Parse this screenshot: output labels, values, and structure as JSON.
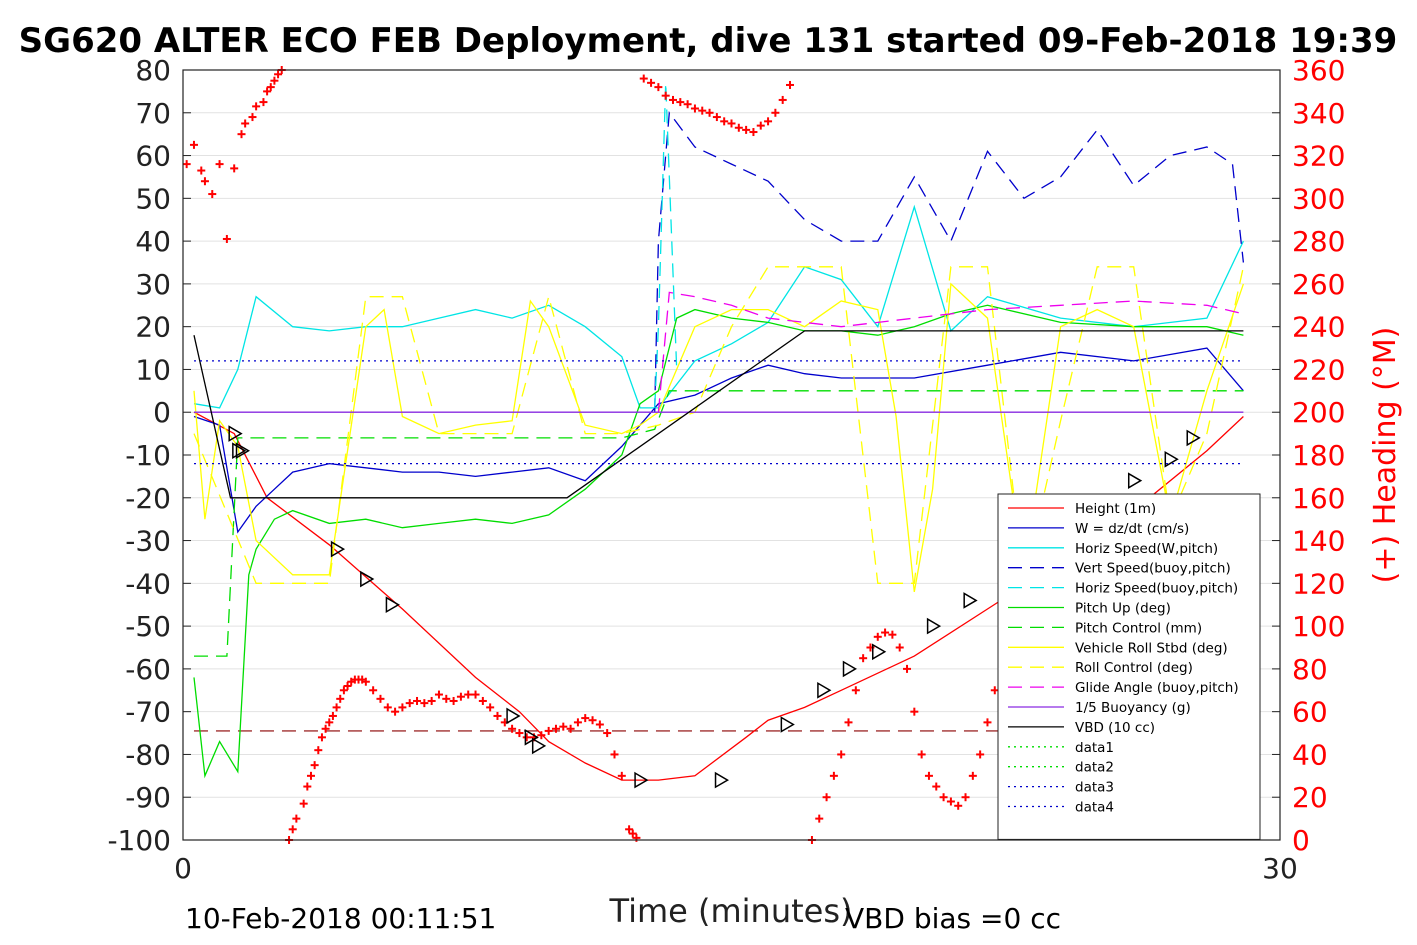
{
  "chart_data": {
    "type": "line",
    "title": "SG620 ALTER ECO FEB Deployment, dive 131 started 09-Feb-2018 19:39",
    "xlabel": "Time (minutes)",
    "ylabel_right": "(+) Heading (°M)",
    "xlim": [
      0,
      30
    ],
    "ylim": [
      -100,
      80
    ],
    "ylim_right": [
      0,
      360
    ],
    "x_ticks": [
      "0",
      "30"
    ],
    "y_ticks": [
      "80",
      "70",
      "60",
      "50",
      "40",
      "30",
      "20",
      "10",
      "0",
      "-10",
      "-20",
      "-30",
      "-40",
      "-50",
      "-60",
      "-70",
      "-80",
      "-90",
      "-100"
    ],
    "y_right_ticks": [
      "360",
      "340",
      "320",
      "300",
      "280",
      "260",
      "240",
      "220",
      "200",
      "180",
      "160",
      "140",
      "120",
      "100",
      "80",
      "60",
      "40",
      "20",
      "0"
    ],
    "footer_left": "10-Feb-2018 00:11:51",
    "footer_right": "VBD bias =0 cc",
    "legend_position": "lower-right",
    "series": [
      {
        "name": "Height (1m)",
        "color": "#ff0000",
        "style": "solid",
        "x": [
          0.3,
          1.4,
          2.3,
          4.0,
          6.0,
          8.0,
          9.2,
          10.0,
          11.0,
          12.0,
          13.0,
          14.0,
          15.4,
          16.0,
          17.0,
          18.0,
          20.0,
          22.0,
          24.0,
          26.0,
          28.0,
          29.0
        ],
        "y": [
          0,
          -5,
          -20,
          -31,
          -46,
          -62,
          -70,
          -77,
          -82,
          -86,
          -86,
          -85,
          -76,
          -72,
          -69,
          -65,
          -57,
          -46,
          -35,
          -23,
          -9,
          -1
        ]
      },
      {
        "name": "W = dz/dt (cm/s)",
        "color": "#0000cc",
        "style": "solid",
        "x": [
          0.3,
          1.0,
          1.5,
          2.0,
          2.5,
          3.0,
          4.0,
          5.0,
          6.0,
          7.0,
          8.0,
          9.0,
          10.0,
          11.0,
          12.0,
          12.5,
          13.0,
          14.0,
          15.0,
          16.0,
          17.0,
          18.0,
          20.0,
          22.0,
          24.0,
          26.0,
          28.0,
          29.0
        ],
        "y": [
          -1,
          -3,
          -28,
          -22,
          -18,
          -14,
          -12,
          -13,
          -14,
          -14,
          -15,
          -14,
          -13,
          -16,
          -8,
          -3,
          2,
          4,
          8,
          11,
          9,
          8,
          8,
          11,
          14,
          12,
          15,
          5
        ]
      },
      {
        "name": "Horiz Speed(W,pitch)",
        "color": "#00e5e5",
        "style": "solid",
        "x": [
          0.3,
          1.0,
          1.5,
          2.0,
          3.0,
          4.0,
          5.0,
          6.0,
          7.0,
          8.0,
          9.0,
          10.0,
          11.0,
          12.0,
          12.5,
          13.0,
          14.0,
          15.0,
          16.0,
          17.0,
          18.0,
          19.0,
          20.0,
          21.0,
          22.0,
          24.0,
          26.0,
          28.0,
          29.0
        ],
        "y": [
          2,
          1,
          10,
          27,
          20,
          19,
          20,
          20,
          22,
          24,
          22,
          25,
          20,
          13,
          1,
          1,
          12,
          16,
          21,
          34,
          31,
          20,
          48,
          19,
          27,
          22,
          20,
          22,
          40
        ]
      },
      {
        "name": "Vert Speed(buoy,pitch)",
        "color": "#0000cc",
        "style": "dashed",
        "x": [
          12.9,
          13.0,
          13.3,
          14.0,
          15.0,
          16.0,
          17.0,
          18.0,
          19.0,
          20.0,
          21.0,
          22.0,
          23.0,
          24.0,
          25.0,
          26.0,
          27.0,
          28.0,
          28.7,
          29.0
        ],
        "y": [
          0,
          40,
          70,
          62,
          58,
          54,
          45,
          40,
          40,
          55,
          40,
          61,
          50,
          55,
          66,
          53,
          60,
          62,
          58,
          35
        ]
      },
      {
        "name": "Horiz Speed(buoy,pitch)",
        "color": "#00e5e5",
        "style": "dashed",
        "x": [
          12.9,
          13.0,
          13.2,
          13.5
        ],
        "y": [
          1,
          20,
          77,
          10
        ]
      },
      {
        "name": "Pitch Up (deg)",
        "color": "#00dd00",
        "style": "solid",
        "x": [
          0.3,
          0.6,
          1.0,
          1.5,
          1.8,
          2.0,
          2.5,
          3.0,
          4.0,
          5.0,
          6.0,
          7.0,
          8.0,
          9.0,
          10.0,
          11.0,
          12.0,
          12.5,
          13.0,
          13.5,
          14.0,
          15.0,
          16.0,
          17.0,
          18.0,
          19.0,
          20.0,
          21.0,
          22.0,
          24.0,
          26.0,
          28.0,
          29.0
        ],
        "y": [
          -62,
          -85,
          -77,
          -84,
          -38,
          -32,
          -25,
          -23,
          -26,
          -25,
          -27,
          -26,
          -25,
          -26,
          -24,
          -18,
          -10,
          2,
          5,
          22,
          24,
          22,
          21,
          19,
          19,
          18,
          20,
          23,
          25,
          21,
          20,
          20,
          18
        ]
      },
      {
        "name": "Pitch Control (mm)",
        "color": "#00dd00",
        "style": "dashed",
        "x": [
          0.3,
          1.2,
          1.5,
          2.0,
          4.0,
          8.0,
          12.0,
          12.9,
          13.3,
          18.0,
          24.0,
          29.0
        ],
        "y": [
          -57,
          -57,
          -6,
          -6,
          -6,
          -6,
          -6,
          -4,
          5,
          5,
          5,
          5
        ]
      },
      {
        "name": "Vehicle Roll Stbd (deg)",
        "color": "#ffff00",
        "style": "solid",
        "x": [
          0.3,
          0.6,
          1.0,
          1.5,
          2.0,
          3.0,
          4.0,
          5.0,
          5.5,
          6.0,
          7.0,
          8.0,
          9.0,
          9.5,
          10.0,
          11.0,
          12.0,
          12.5,
          13.0,
          14.0,
          15.0,
          16.0,
          17.0,
          18.0,
          19.0,
          19.5,
          20.0,
          20.5,
          21.0,
          22.0,
          23.0,
          24.0,
          25.0,
          26.0,
          27.0,
          28.0,
          29.0
        ],
        "y": [
          5,
          -25,
          -2,
          -8,
          -30,
          -38,
          -38,
          20,
          24,
          -1,
          -5,
          -3,
          -2,
          26,
          20,
          -3,
          -5,
          -3,
          0,
          20,
          24,
          24,
          20,
          26,
          24,
          -1,
          -42,
          -18,
          30,
          22,
          -38,
          20,
          24,
          20,
          -25,
          5,
          30
        ]
      },
      {
        "name": "Roll Control (deg)",
        "color": "#ffff00",
        "style": "dashed",
        "x": [
          0.3,
          2.0,
          3.0,
          4.0,
          5.0,
          6.0,
          7.0,
          8.0,
          9.0,
          10.0,
          11.0,
          12.0,
          13.0,
          14.0,
          15.0,
          16.0,
          17.0,
          18.0,
          19.0,
          20.0,
          21.0,
          22.0,
          23.0,
          24.0,
          25.0,
          26.0,
          27.0,
          28.0,
          29.0
        ],
        "y": [
          -5,
          -40,
          -40,
          -40,
          27,
          27,
          -5,
          -5,
          -5,
          27,
          -5,
          -5,
          -3,
          0,
          20,
          34,
          34,
          34,
          -40,
          -40,
          34,
          34,
          -40,
          -2,
          34,
          34,
          -25,
          -5,
          34
        ]
      },
      {
        "name": "Glide Angle (buoy,pitch)",
        "color": "#ee00ee",
        "style": "dashed",
        "x": [
          13.0,
          13.3,
          14.0,
          15.0,
          16.0,
          17.0,
          18.0,
          20.0,
          22.0,
          24.0,
          26.0,
          28.0,
          29.0
        ],
        "y": [
          0,
          28,
          27,
          25,
          22,
          21,
          20,
          22,
          24,
          25,
          26,
          25,
          23
        ]
      },
      {
        "name": "1/5 Buoyancy (g)",
        "color": "#8a2be2",
        "style": "solid",
        "x": [
          0.3,
          12.9,
          13.0,
          29.0
        ],
        "y": [
          0,
          0,
          0,
          0
        ]
      },
      {
        "name": "VBD (10 cc)",
        "color": "#000000",
        "style": "solid",
        "x": [
          0.3,
          1.3,
          10.5,
          17.0,
          29.0
        ],
        "y": [
          18,
          -20,
          -20,
          19,
          19
        ]
      },
      {
        "name": "data1",
        "color": "#00dd00",
        "style": "dotted",
        "x": [],
        "y": []
      },
      {
        "name": "data2",
        "color": "#00dd00",
        "style": "dotted",
        "x": [],
        "y": []
      },
      {
        "name": "data3",
        "color": "#0000cc",
        "style": "dotted",
        "x": [
          0.3,
          29.0
        ],
        "y": [
          12,
          12
        ]
      },
      {
        "name": "data4",
        "color": "#0000cc",
        "style": "dotted",
        "x": [
          0.3,
          29.0
        ],
        "y": [
          -12,
          -12
        ]
      }
    ],
    "reference_line": {
      "color": "#8b0000",
      "style": "dashed",
      "y": -74.5
    },
    "heading_points": {
      "color": "#ff0000",
      "x": [
        0.1,
        0.3,
        0.5,
        0.6,
        0.8,
        1.0,
        1.2,
        1.4,
        1.6,
        1.7,
        1.9,
        2.0,
        2.2,
        2.3,
        2.4,
        2.5,
        2.6,
        2.7,
        2.9,
        3.0,
        3.1,
        3.3,
        3.4,
        3.5,
        3.6,
        3.7,
        3.8,
        3.9,
        4.0,
        4.1,
        4.2,
        4.3,
        4.4,
        4.5,
        4.6,
        4.7,
        4.8,
        4.9,
        5.0,
        5.2,
        5.4,
        5.6,
        5.8,
        6.0,
        6.2,
        6.4,
        6.6,
        6.8,
        7.0,
        7.2,
        7.4,
        7.6,
        7.8,
        8.0,
        8.2,
        8.4,
        8.6,
        8.8,
        9.0,
        9.2,
        9.4,
        9.6,
        9.8,
        10.0,
        10.2,
        10.4,
        10.6,
        10.8,
        11.0,
        11.2,
        11.4,
        11.6,
        11.8,
        12.0,
        12.2,
        12.3,
        12.4,
        12.6,
        12.8,
        13.0,
        13.2,
        13.4,
        13.6,
        13.8,
        14.0,
        14.2,
        14.4,
        14.6,
        14.8,
        15.0,
        15.2,
        15.4,
        15.6,
        15.8,
        16.0,
        16.2,
        16.4,
        16.6,
        17.2,
        17.4,
        17.6,
        17.8,
        18.0,
        18.2,
        18.4,
        18.6,
        18.8,
        19.0,
        19.2,
        19.4,
        19.6,
        19.8,
        20.0,
        20.2,
        20.4,
        20.6,
        20.8,
        21.0,
        21.2,
        21.4,
        21.6,
        21.8,
        22.0,
        22.2,
        22.4,
        22.6,
        22.8,
        23.0,
        23.2,
        23.4,
        23.6,
        23.8,
        24.0,
        24.2,
        24.4,
        24.6,
        24.8,
        25.0,
        25.2,
        25.4,
        25.6,
        25.8,
        26.0,
        26.2,
        26.4,
        26.6
      ],
      "y": [
        316,
        325,
        313,
        308,
        302,
        316,
        281,
        314,
        330,
        335,
        338,
        343,
        345,
        350,
        352,
        355,
        358,
        360,
        0,
        5,
        10,
        17,
        25,
        30,
        35,
        42,
        48,
        52,
        55,
        58,
        62,
        66,
        70,
        72,
        74,
        75,
        75,
        75,
        74,
        70,
        66,
        62,
        60,
        62,
        64,
        65,
        64,
        65,
        68,
        66,
        65,
        67,
        68,
        68,
        65,
        62,
        58,
        55,
        52,
        50,
        48,
        48,
        49,
        51,
        52,
        53,
        52,
        55,
        57,
        56,
        54,
        50,
        40,
        30,
        5,
        3,
        1,
        356,
        354,
        352,
        348,
        346,
        345,
        344,
        342,
        341,
        340,
        338,
        336,
        335,
        333,
        332,
        331,
        334,
        336,
        340,
        346,
        353,
        0,
        10,
        20,
        30,
        40,
        55,
        70,
        85,
        90,
        95,
        97,
        96,
        90,
        80,
        60,
        40,
        30,
        25,
        20,
        18,
        16,
        20,
        30,
        40,
        55,
        70,
        90,
        100,
        115,
        115,
        105,
        80,
        70,
        50,
        40,
        35,
        30,
        25,
        20,
        18,
        20,
        30,
        35,
        45,
        55,
        80,
        85,
        82
      ]
    },
    "triangle_markers_x": [
      1.4,
      1.5,
      1.6,
      4.2,
      5.0,
      5.7,
      9.0,
      9.5,
      9.7,
      12.5,
      14.7,
      16.5,
      17.5,
      18.2,
      19.0,
      20.5,
      21.5,
      22.5,
      23.0,
      23.8,
      25.0,
      26.0,
      27.0,
      27.6
    ],
    "triangle_markers_y": [
      -5,
      -9,
      -9,
      -32,
      -39,
      -45,
      -71,
      -76,
      -78,
      -86,
      -86,
      -73,
      -65,
      -60,
      -56,
      -50,
      -44,
      -39,
      -34,
      -29,
      -22,
      -16,
      -11,
      -6
    ]
  }
}
